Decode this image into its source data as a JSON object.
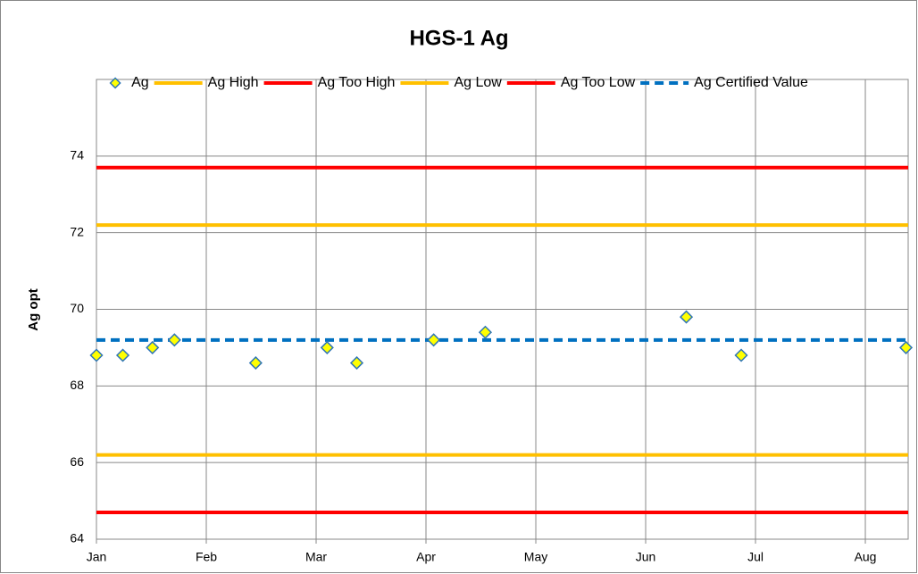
{
  "chart_data": {
    "type": "scatter",
    "title": "HGS-1 Ag",
    "y_label": "Ag opt",
    "xlim": [
      0,
      7.39
    ],
    "xticks": [
      {
        "value": 0,
        "label": "Jan"
      },
      {
        "value": 1,
        "label": "Feb"
      },
      {
        "value": 2,
        "label": "Mar"
      },
      {
        "value": 3,
        "label": "Apr"
      },
      {
        "value": 4,
        "label": "May"
      },
      {
        "value": 5,
        "label": "Jun"
      },
      {
        "value": 6,
        "label": "Jul"
      },
      {
        "value": 7,
        "label": "Aug"
      }
    ],
    "ylim": [
      64,
      76
    ],
    "yticks": [
      64,
      66,
      68,
      70,
      72,
      74
    ],
    "grid": true,
    "legend": "top",
    "series": [
      {
        "name": "Ag",
        "kind": "marker",
        "color": "#ffff00",
        "edge_color": "#2e75b6",
        "x": [
          0,
          0.24,
          0.51,
          0.71,
          1.45,
          2.1,
          2.37,
          3.07,
          3.54,
          5.37,
          5.87,
          7.37
        ],
        "values": [
          68.8,
          68.8,
          69.0,
          69.2,
          68.6,
          69.0,
          68.6,
          69.2,
          69.4,
          69.8,
          68.8,
          69.0
        ]
      },
      {
        "name": "Ag High",
        "kind": "line",
        "color": "#ffc000",
        "x": [
          0,
          7.39
        ],
        "values": [
          72.2,
          72.2
        ]
      },
      {
        "name": "Ag Too High",
        "kind": "line",
        "color": "#ff0000",
        "x": [
          0,
          7.39
        ],
        "values": [
          73.7,
          73.7
        ]
      },
      {
        "name": "Ag Low",
        "kind": "line",
        "color": "#ffc000",
        "x": [
          0,
          7.39
        ],
        "values": [
          66.2,
          66.2
        ]
      },
      {
        "name": "Ag Too Low",
        "kind": "line",
        "color": "#ff0000",
        "x": [
          0,
          7.39
        ],
        "values": [
          64.7,
          64.7
        ]
      },
      {
        "name": "Ag Certified Value",
        "kind": "dashed",
        "color": "#0070c0",
        "x": [
          0,
          7.39
        ],
        "values": [
          69.2,
          69.2
        ]
      }
    ]
  }
}
